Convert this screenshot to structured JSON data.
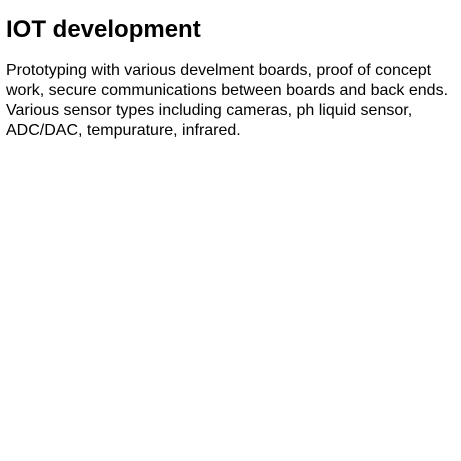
{
  "section": {
    "title": "IOT development",
    "description": "Prototyping with various develment boards, proof of concept work, secure communications between boards and back ends. Various sensor types including cameras, ph liquid sensor, ADC/DAC, tempurature, infrared."
  }
}
